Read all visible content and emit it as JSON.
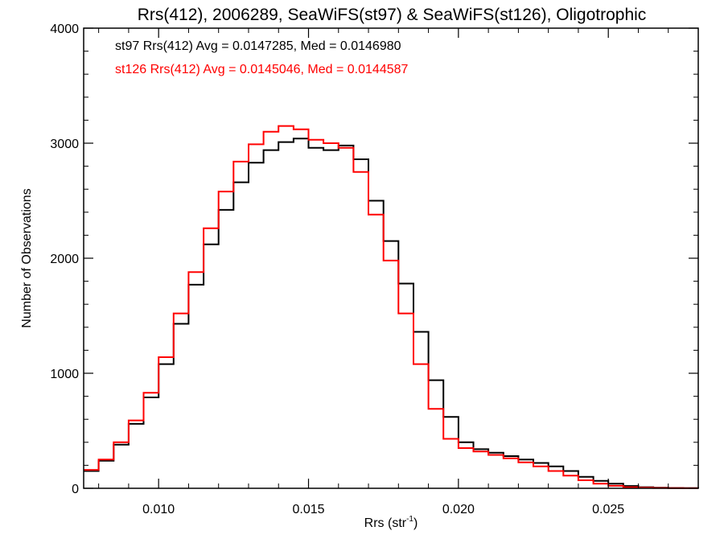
{
  "chart_data": {
    "type": "line",
    "title": "Rrs(412), 2006289, SeaWiFS(st97) & SeaWiFS(st126), Oligotrophic",
    "xlabel_main": "Rrs (str",
    "xlabel_sup": "-1",
    "xlabel_end": ")",
    "ylabel": "Number of Observations",
    "xlim": [
      0.0075,
      0.028
    ],
    "ylim": [
      0,
      4000
    ],
    "xticks": [
      {
        "value": 0.01,
        "label": "0.010"
      },
      {
        "value": 0.015,
        "label": "0.015"
      },
      {
        "value": 0.02,
        "label": "0.020"
      },
      {
        "value": 0.025,
        "label": "0.025"
      }
    ],
    "yticks": [
      {
        "value": 0,
        "label": "0"
      },
      {
        "value": 1000,
        "label": "1000"
      },
      {
        "value": 2000,
        "label": "2000"
      },
      {
        "value": 3000,
        "label": "3000"
      },
      {
        "value": 4000,
        "label": "4000"
      }
    ],
    "grid": false,
    "legend_position": "top-left",
    "annotations": [
      {
        "text": "st97 Rrs(412) Avg = 0.0147285, Med = 0.0146980",
        "color": "#000000"
      },
      {
        "text": "st126 Rrs(412) Avg = 0.0145046, Med = 0.0144587",
        "color": "#ff0000"
      }
    ],
    "series": [
      {
        "color": "#000000",
        "x": [
          0.0075,
          0.008,
          0.0085,
          0.009,
          0.0095,
          0.01,
          0.0105,
          0.011,
          0.0115,
          0.012,
          0.0125,
          0.013,
          0.0135,
          0.014,
          0.0145,
          0.015,
          0.0155,
          0.016,
          0.0165,
          0.017,
          0.0175,
          0.018,
          0.0185,
          0.019,
          0.0195,
          0.02,
          0.0205,
          0.021,
          0.0215,
          0.022,
          0.0225,
          0.023,
          0.0235,
          0.024,
          0.0245,
          0.025,
          0.0255,
          0.026,
          0.0265,
          0.027,
          0.0275,
          0.028
        ],
        "y": [
          150,
          240,
          380,
          560,
          790,
          1080,
          1430,
          1770,
          2120,
          2420,
          2660,
          2830,
          2940,
          3010,
          3040,
          2960,
          2940,
          2980,
          2860,
          2500,
          2150,
          1780,
          1360,
          940,
          620,
          400,
          340,
          310,
          280,
          250,
          220,
          190,
          150,
          100,
          65,
          40,
          20,
          10,
          5,
          3,
          2,
          1
        ]
      },
      {
        "color": "#ff0000",
        "x": [
          0.0075,
          0.008,
          0.0085,
          0.009,
          0.0095,
          0.01,
          0.0105,
          0.011,
          0.0115,
          0.012,
          0.0125,
          0.013,
          0.0135,
          0.014,
          0.0145,
          0.015,
          0.0155,
          0.016,
          0.0165,
          0.017,
          0.0175,
          0.018,
          0.0185,
          0.019,
          0.0195,
          0.02,
          0.0205,
          0.021,
          0.0215,
          0.022,
          0.0225,
          0.023,
          0.0235,
          0.024,
          0.0245,
          0.025,
          0.0255,
          0.026,
          0.0265,
          0.027,
          0.0275,
          0.028
        ],
        "y": [
          160,
          250,
          400,
          590,
          830,
          1140,
          1520,
          1880,
          2260,
          2580,
          2840,
          2990,
          3100,
          3150,
          3120,
          3030,
          3000,
          2960,
          2750,
          2380,
          1980,
          1520,
          1080,
          690,
          430,
          350,
          320,
          290,
          260,
          225,
          190,
          150,
          110,
          70,
          40,
          22,
          10,
          5,
          3,
          2,
          1,
          1
        ]
      }
    ]
  }
}
